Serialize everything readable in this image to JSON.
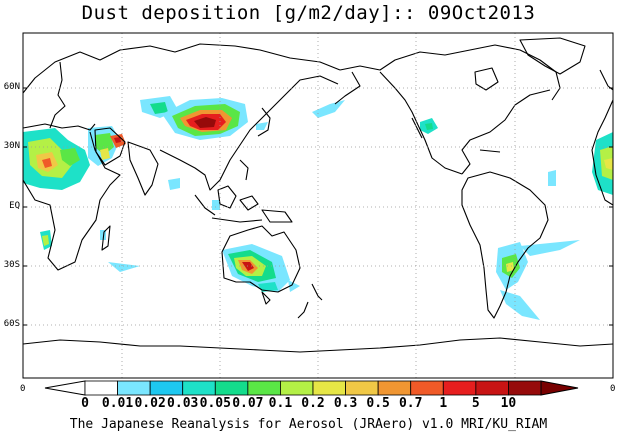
{
  "title": "Dust deposition [g/m2/day]:: 09Oct2013",
  "lat_labels": [
    "60N",
    "30N",
    "EQ",
    "30S",
    "60S"
  ],
  "lon_tick_labels": [
    "0",
    "0"
  ],
  "colorbar": {
    "labels": [
      "0",
      "0.01",
      "0.02",
      "0.03",
      "0.05",
      "0.07",
      "0.1",
      "0.2",
      "0.3",
      "0.5",
      "0.7",
      "1",
      "5",
      "10"
    ],
    "colors": [
      "#ffffff",
      "#ffffff",
      "#7ae6ff",
      "#1ec8f0",
      "#1ee1c8",
      "#14dc8c",
      "#5ae646",
      "#b4f046",
      "#e6e646",
      "#f0c846",
      "#f09632",
      "#f05a28",
      "#e61e1e",
      "#c81414",
      "#960a0a",
      "#780000"
    ]
  },
  "footer": "The Japanese Reanalysis for Aerosol (JRAero) v1.0 MRI/KU_RIAM"
}
